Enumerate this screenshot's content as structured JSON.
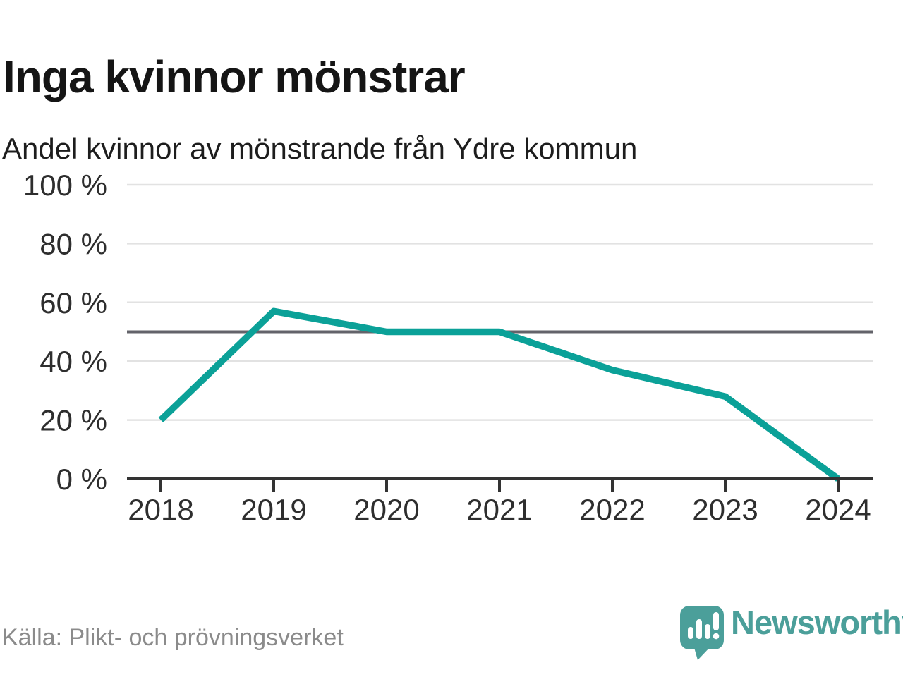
{
  "chart_data": {
    "type": "line",
    "title": "Inga kvinnor mönstrar",
    "subtitle": "Andel kvinnor av mönstrande från Ydre kommun",
    "categories": [
      "2018",
      "2019",
      "2020",
      "2021",
      "2022",
      "2023",
      "2024"
    ],
    "series": [
      {
        "name": "Andel kvinnor av mönstrande",
        "values": [
          20,
          57,
          50,
          50,
          37,
          28,
          0
        ]
      }
    ],
    "unit": "%",
    "xlabel": "",
    "ylabel": "",
    "ylim": [
      0,
      100
    ],
    "y_ticks": [
      0,
      20,
      40,
      60,
      80,
      100
    ],
    "y_tick_labels": [
      "0 %",
      "20 %",
      "40 %",
      "60 %",
      "80 %",
      "100 %"
    ],
    "reference_line": 50,
    "grid": true,
    "legend": "none",
    "colors": {
      "line": "#0ba198",
      "reference_line": "#63636a",
      "axis": "#333333",
      "grid": "#e2e2e2",
      "tick_label": "#2e2e2e"
    }
  },
  "footer": {
    "source": "Källa: Plikt- och prövningsverket",
    "brand": "Newsworthy",
    "brand_color": "#4b9f9a",
    "logo_icon": "speech-bubble-bar-chart-exclamation"
  }
}
